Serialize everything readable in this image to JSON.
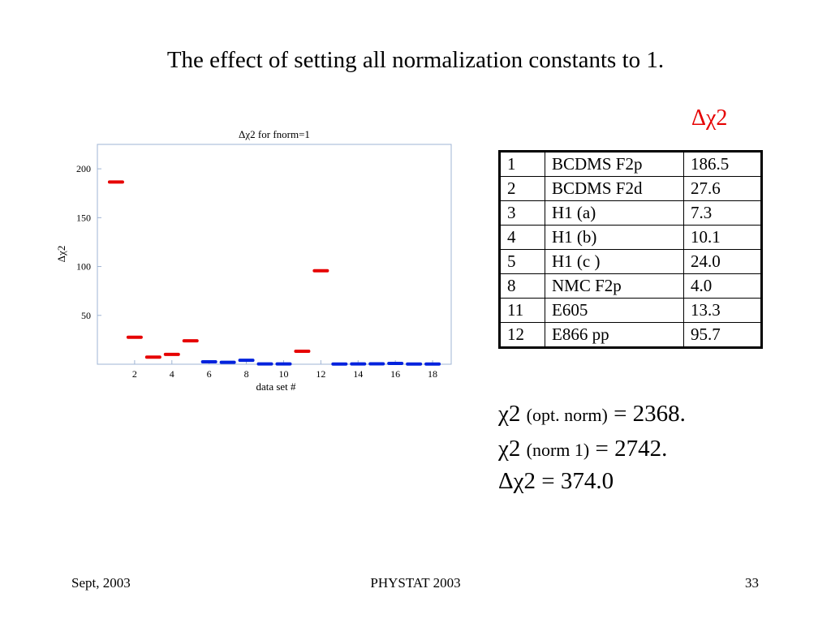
{
  "slide": {
    "title": "The effect of setting all normalization constants to 1.",
    "delta_header": "Δχ2",
    "table_rows": [
      {
        "id": "1",
        "name": "BCDMS F2p",
        "value": "186.5"
      },
      {
        "id": "2",
        "name": "BCDMS F2d",
        "value": "27.6"
      },
      {
        "id": "3",
        "name": "H1 (a)",
        "value": "7.3"
      },
      {
        "id": "4",
        "name": "H1 (b)",
        "value": "10.1"
      },
      {
        "id": "5",
        "name": "H1 (c )",
        "value": "24.0"
      },
      {
        "id": "8",
        "name": "NMC F2p",
        "value": "4.0"
      },
      {
        "id": "11",
        "name": "E605",
        "value": "13.3"
      },
      {
        "id": "12",
        "name": "E866 pp",
        "value": "95.7"
      }
    ],
    "summary": {
      "line1_sym": "χ2",
      "line1_mid": "(opt. norm)",
      "line1_val": "= 2368.",
      "line2_sym": "χ2",
      "line2_mid": "(norm 1)",
      "line2_val": "= 2742.",
      "line3": "Δχ2 = 374.0"
    },
    "footer": {
      "left": "Sept, 2003",
      "center": "PHYSTAT 2003",
      "right": "33"
    }
  },
  "chart_data": {
    "type": "scatter",
    "title": "Δχ2 for fnorm=1",
    "xlabel": "data set #",
    "ylabel": "Δχ2",
    "xlim": [
      0,
      19
    ],
    "ylim": [
      0,
      225
    ],
    "xticks": [
      2,
      4,
      6,
      8,
      10,
      12,
      14,
      16,
      18
    ],
    "yticks": [
      50,
      100,
      150,
      200
    ],
    "grid": false,
    "colors": {
      "red": "#e60000",
      "blue": "#0022dd",
      "frame": "#9fb4d4"
    },
    "series": [
      {
        "color": "red",
        "points": [
          {
            "x": 1,
            "y": 186.5
          },
          {
            "x": 2,
            "y": 27.6
          },
          {
            "x": 3,
            "y": 7.3
          },
          {
            "x": 4,
            "y": 10.1
          },
          {
            "x": 5,
            "y": 24.0
          },
          {
            "x": 11,
            "y": 13.3
          },
          {
            "x": 12,
            "y": 95.7
          }
        ]
      },
      {
        "color": "blue",
        "points": [
          {
            "x": 6,
            "y": 2.5
          },
          {
            "x": 7,
            "y": 2.0
          },
          {
            "x": 8,
            "y": 4.0
          },
          {
            "x": 9,
            "y": 0.3
          },
          {
            "x": 10,
            "y": 0.3
          },
          {
            "x": 13,
            "y": 0.2
          },
          {
            "x": 14,
            "y": 0.3
          },
          {
            "x": 15,
            "y": 0.4
          },
          {
            "x": 16,
            "y": 0.8
          },
          {
            "x": 17,
            "y": 0.2
          },
          {
            "x": 18,
            "y": 0.2
          }
        ]
      }
    ]
  }
}
